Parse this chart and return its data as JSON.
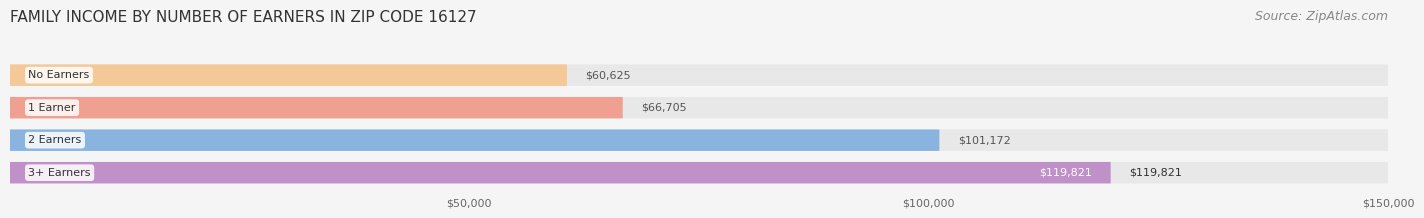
{
  "title": "FAMILY INCOME BY NUMBER OF EARNERS IN ZIP CODE 16127",
  "source": "Source: ZipAtlas.com",
  "categories": [
    "No Earners",
    "1 Earner",
    "2 Earners",
    "3+ Earners"
  ],
  "values": [
    60625,
    66705,
    101172,
    119821
  ],
  "bar_colors": [
    "#f5c897",
    "#f0a090",
    "#8ab4e0",
    "#c090c8"
  ],
  "label_colors": [
    "#555555",
    "#555555",
    "#555555",
    "#ffffff"
  ],
  "xlim": [
    0,
    150000
  ],
  "x_ticks": [
    50000,
    100000,
    150000
  ],
  "x_tick_labels": [
    "$50,000",
    "$100,000",
    "$150,000"
  ],
  "background_color": "#f5f5f5",
  "bar_background_color": "#e8e8e8",
  "title_fontsize": 11,
  "source_fontsize": 9,
  "bar_height": 0.62,
  "bar_gap": 0.1
}
